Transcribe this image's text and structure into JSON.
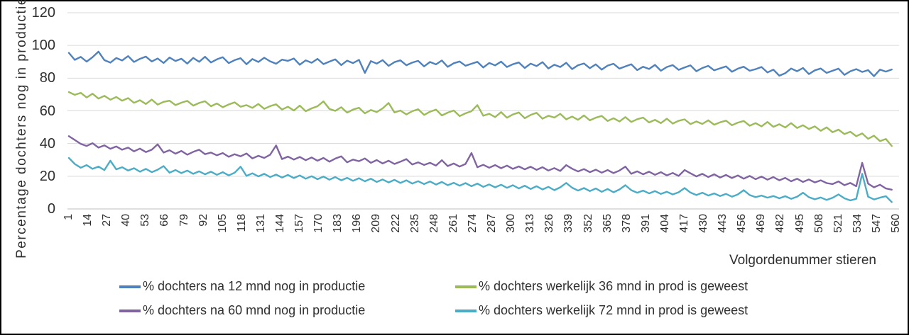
{
  "chart_data": {
    "type": "line",
    "title": "",
    "xlabel": "Volgordenummer stieren",
    "ylabel": "Percentage dochters nog in productie",
    "ylim": [
      0,
      120
    ],
    "yticks": [
      0,
      20,
      40,
      60,
      80,
      100,
      120
    ],
    "xticks": [
      1,
      14,
      27,
      40,
      53,
      66,
      79,
      92,
      105,
      118,
      131,
      144,
      157,
      170,
      183,
      196,
      209,
      222,
      235,
      248,
      261,
      274,
      287,
      300,
      313,
      326,
      339,
      352,
      365,
      378,
      391,
      404,
      417,
      430,
      443,
      456,
      469,
      482,
      495,
      508,
      521,
      534,
      547,
      560
    ],
    "x_range": [
      1,
      560
    ],
    "sample_x_start": 1,
    "sample_x_step": 4,
    "grid": true,
    "gridline_color": "#d9d9d9",
    "axis_line_color": "#bfbfbf",
    "legend_position": "bottom",
    "series": [
      {
        "name": "% dochters na 12 mnd nog in productie",
        "color": "#4F81BD",
        "values": [
          95.5,
          91.2,
          93.0,
          90.1,
          92.8,
          96.2,
          91.0,
          89.5,
          92.3,
          90.8,
          93.5,
          89.9,
          91.8,
          93.2,
          90.2,
          92.0,
          89.3,
          92.6,
          90.5,
          91.9,
          88.9,
          92.4,
          90.0,
          93.1,
          89.6,
          91.5,
          92.8,
          89.2,
          91.0,
          92.2,
          88.5,
          91.7,
          89.9,
          92.5,
          90.3,
          88.8,
          91.3,
          90.6,
          92.0,
          88.2,
          90.9,
          89.4,
          91.8,
          88.6,
          90.1,
          91.5,
          88.0,
          90.7,
          89.2,
          91.2,
          83.2,
          90.4,
          88.9,
          91.0,
          87.5,
          89.8,
          90.9,
          87.9,
          89.5,
          90.6,
          87.2,
          89.9,
          88.4,
          90.8,
          86.9,
          89.1,
          90.2,
          87.6,
          88.8,
          90.0,
          86.5,
          89.3,
          87.8,
          90.1,
          86.8,
          88.5,
          89.6,
          86.2,
          88.9,
          87.4,
          89.8,
          85.9,
          88.2,
          86.8,
          89.4,
          85.5,
          87.9,
          89.0,
          86.1,
          88.4,
          85.2,
          87.7,
          88.8,
          85.8,
          87.2,
          88.5,
          84.9,
          87.0,
          85.6,
          88.1,
          84.5,
          86.8,
          88.0,
          85.1,
          86.5,
          87.8,
          84.2,
          86.2,
          87.5,
          84.8,
          86.0,
          87.2,
          83.9,
          85.8,
          87.0,
          84.5,
          85.5,
          86.8,
          83.5,
          85.2,
          81.5,
          83.0,
          85.9,
          84.2,
          86.2,
          82.5,
          84.8,
          85.9,
          83.2,
          84.5,
          85.8,
          82.0,
          84.2,
          85.5,
          83.8,
          84.9,
          81.2,
          85.2,
          84.0,
          85.3
        ]
      },
      {
        "name": "% dochters werkelijk 36 mnd in prod is geweest",
        "color": "#9BBB59",
        "values": [
          71.5,
          69.8,
          71.0,
          68.2,
          70.5,
          67.5,
          69.2,
          66.8,
          68.5,
          66.2,
          67.8,
          64.9,
          66.5,
          64.2,
          66.9,
          63.8,
          65.5,
          66.2,
          63.5,
          65.0,
          66.1,
          63.2,
          64.8,
          65.9,
          62.8,
          64.5,
          62.2,
          63.9,
          65.2,
          62.5,
          63.5,
          61.8,
          64.2,
          61.2,
          62.9,
          64.0,
          60.8,
          62.5,
          60.2,
          63.2,
          59.8,
          61.5,
          62.8,
          65.8,
          61.2,
          60.0,
          62.2,
          58.9,
          60.8,
          61.9,
          58.5,
          60.5,
          59.2,
          61.5,
          64.8,
          59.0,
          60.2,
          57.8,
          59.8,
          61.0,
          57.5,
          59.5,
          60.8,
          57.2,
          58.9,
          60.2,
          56.8,
          58.5,
          59.8,
          63.5,
          57.0,
          58.2,
          56.2,
          59.2,
          55.8,
          57.8,
          59.0,
          55.5,
          57.5,
          58.8,
          55.2,
          57.0,
          55.9,
          58.2,
          54.8,
          56.5,
          54.5,
          57.2,
          54.2,
          55.8,
          56.9,
          53.8,
          55.5,
          53.5,
          56.2,
          53.2,
          54.9,
          55.9,
          52.9,
          54.5,
          52.5,
          55.2,
          52.2,
          53.9,
          54.8,
          51.9,
          53.5,
          52.0,
          54.2,
          51.5,
          53.0,
          54.0,
          51.2,
          52.8,
          53.8,
          50.9,
          52.5,
          50.5,
          53.2,
          50.2,
          51.8,
          49.8,
          52.5,
          49.5,
          51.2,
          48.9,
          50.5,
          47.8,
          49.9,
          46.9,
          48.5,
          45.8,
          47.2,
          44.5,
          46.2,
          42.9,
          44.8,
          41.5,
          42.8,
          38.5
        ]
      },
      {
        "name": "% dochters na 60 mnd nog in productie",
        "color": "#8064A2",
        "values": [
          44.5,
          42.2,
          39.8,
          38.5,
          40.2,
          37.5,
          38.9,
          36.8,
          38.2,
          36.2,
          37.5,
          35.2,
          36.9,
          34.8,
          36.2,
          39.5,
          34.5,
          35.9,
          33.8,
          35.5,
          33.2,
          34.9,
          36.2,
          33.5,
          34.5,
          32.8,
          34.2,
          31.9,
          33.5,
          32.2,
          33.9,
          30.9,
          32.5,
          31.2,
          33.2,
          38.8,
          30.5,
          32.0,
          30.2,
          31.8,
          29.8,
          31.5,
          29.5,
          31.2,
          28.9,
          30.8,
          32.2,
          28.5,
          30.2,
          29.2,
          30.9,
          28.2,
          29.9,
          27.8,
          29.5,
          27.5,
          28.9,
          30.5,
          27.2,
          28.5,
          26.9,
          28.2,
          26.5,
          29.8,
          26.2,
          27.8,
          25.9,
          27.5,
          34.2,
          25.5,
          27.0,
          25.2,
          26.8,
          24.9,
          26.5,
          24.5,
          26.0,
          24.2,
          25.8,
          23.9,
          25.5,
          23.5,
          25.0,
          23.2,
          26.8,
          24.6,
          22.9,
          24.4,
          22.5,
          24.0,
          22.2,
          23.8,
          21.9,
          23.5,
          25.9,
          21.5,
          23.0,
          21.2,
          22.8,
          20.9,
          22.5,
          20.5,
          22.0,
          20.2,
          23.8,
          21.8,
          19.9,
          21.5,
          19.5,
          21.2,
          19.2,
          20.8,
          18.9,
          20.5,
          18.5,
          20.2,
          18.2,
          19.8,
          17.9,
          19.5,
          17.5,
          19.0,
          16.9,
          18.5,
          16.5,
          18.0,
          16.2,
          17.5,
          15.8,
          15.2,
          16.8,
          14.5,
          15.9,
          13.9,
          28.2,
          15.5,
          13.2,
          14.8,
          12.5,
          11.8
        ]
      },
      {
        "name": "% dochters werkelijk 72 mnd in prod is geweest",
        "color": "#4BACC6",
        "values": [
          31.2,
          27.5,
          25.2,
          26.8,
          24.5,
          25.9,
          23.8,
          29.5,
          24.2,
          25.5,
          23.5,
          24.9,
          22.8,
          24.5,
          22.5,
          24.0,
          26.2,
          22.2,
          23.8,
          21.9,
          23.5,
          21.5,
          23.0,
          21.2,
          22.8,
          20.9,
          22.5,
          20.5,
          22.2,
          25.8,
          20.2,
          21.8,
          19.9,
          21.5,
          19.5,
          21.0,
          19.2,
          20.8,
          18.9,
          20.5,
          18.5,
          20.0,
          18.2,
          19.8,
          17.9,
          19.5,
          17.5,
          19.0,
          17.2,
          18.8,
          16.9,
          18.5,
          16.5,
          18.0,
          16.2,
          17.8,
          15.9,
          17.5,
          15.5,
          17.0,
          15.2,
          16.8,
          14.9,
          16.5,
          14.5,
          16.0,
          14.2,
          15.8,
          13.9,
          15.5,
          13.5,
          15.0,
          13.2,
          14.8,
          12.9,
          14.5,
          12.5,
          14.2,
          12.2,
          13.9,
          11.9,
          13.5,
          11.5,
          13.2,
          15.9,
          13.0,
          11.2,
          12.8,
          10.9,
          12.5,
          10.5,
          12.2,
          10.2,
          11.9,
          14.5,
          11.5,
          9.9,
          11.2,
          9.5,
          10.9,
          9.2,
          10.5,
          8.9,
          10.2,
          12.8,
          10.0,
          8.5,
          9.9,
          8.2,
          9.5,
          7.9,
          9.2,
          7.5,
          8.9,
          11.5,
          8.5,
          7.2,
          8.2,
          6.9,
          7.9,
          6.5,
          7.8,
          6.2,
          7.5,
          9.9,
          7.2,
          5.9,
          7.0,
          5.5,
          6.8,
          8.9,
          6.5,
          5.2,
          6.2,
          21.5,
          7.5,
          5.8,
          6.9,
          7.8,
          4.2
        ]
      }
    ]
  }
}
